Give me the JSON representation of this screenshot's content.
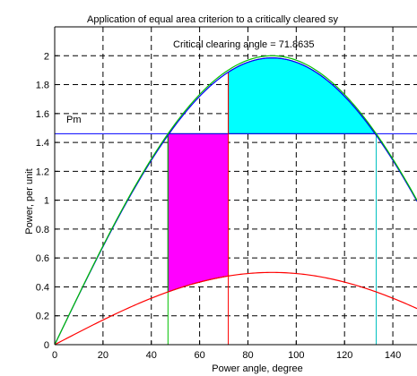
{
  "chart_data": {
    "type": "line",
    "title": "Application of equal area criterion to a critically cleared sy",
    "xlabel": "Power angle, degree",
    "ylabel": "Power, per unit",
    "xlim": [
      0,
      150
    ],
    "ylim": [
      0,
      2.2
    ],
    "xticks": [
      0,
      20,
      40,
      60,
      80,
      100,
      120,
      140
    ],
    "yticks": [
      0,
      0.2,
      0.4,
      0.6,
      0.8,
      1,
      1.2,
      1.4,
      1.6,
      1.8,
      2
    ],
    "grid": true,
    "annotations": {
      "critical_angle_text": "Critical clearing angle = 71.8635",
      "pm_label": "Pm"
    },
    "pm": 1.46,
    "delta0": 46.9,
    "delta_c": 71.8635,
    "delta_max": 133.1,
    "series": [
      {
        "role": "prefault",
        "amplitude": 2.0,
        "color": "#00c000"
      },
      {
        "role": "postfault",
        "amplitude": 1.985,
        "color": "#0000ff"
      },
      {
        "role": "fault",
        "amplitude": 0.5,
        "color": "#ff0000"
      },
      {
        "role": "pm_line",
        "value": 1.46,
        "color": "#0000ff"
      }
    ],
    "areas": {
      "accelerating_color": "#ff00ff",
      "decelerating_color": "#00ffff"
    },
    "vertical_markers": [
      {
        "x": 46.9,
        "color": "#00c000"
      },
      {
        "x": 71.8635,
        "color": "#ff0000"
      },
      {
        "x": 133.1,
        "color": "#00c0c0"
      }
    ]
  }
}
